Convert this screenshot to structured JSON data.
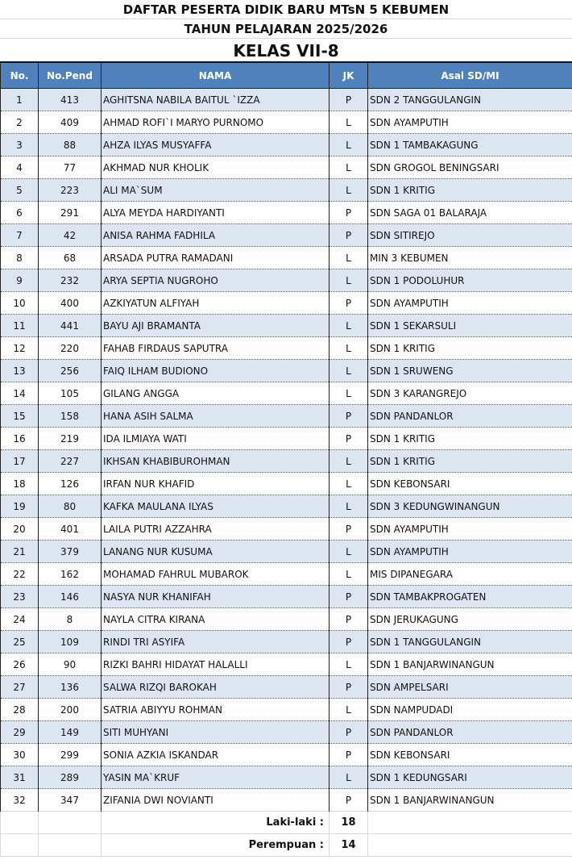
{
  "titles": {
    "line1": "DAFTAR PESERTA DIDIK BARU  MTsN 5 KEBUMEN",
    "line2": "TAHUN PELAJARAN 2025/2026",
    "line3": "KELAS VII-8"
  },
  "colors": {
    "header_bg": "#4f81bd",
    "odd_row_bg": "#dce6f1"
  },
  "columns": [
    "No.",
    "No.Pend",
    "NAMA",
    "JK",
    "Asal SD/MI"
  ],
  "rows": [
    [
      "1",
      "413",
      "AGHITSNA NABILA BAITUL `IZZA",
      "P",
      "SDN 2 TANGGULANGIN"
    ],
    [
      "2",
      "409",
      "AHMAD ROFI`I MARYO PURNOMO",
      "L",
      "SDN AYAMPUTIH"
    ],
    [
      "3",
      "88",
      "AHZA ILYAS MUSYAFFA",
      "L",
      "SDN 1 TAMBAKAGUNG"
    ],
    [
      "4",
      "77",
      "AKHMAD NUR KHOLIK",
      "L",
      "SDN GROGOL BENINGSARI"
    ],
    [
      "5",
      "223",
      "ALI MA`SUM",
      "L",
      "SDN 1 KRITIG"
    ],
    [
      "6",
      "291",
      "ALYA MEYDA HARDIYANTI",
      "P",
      "SDN SAGA 01 BALARAJA"
    ],
    [
      "7",
      "42",
      "ANISA RAHMA FADHILA",
      "P",
      "SDN SITIREJO"
    ],
    [
      "8",
      "68",
      "ARSADA PUTRA RAMADANI",
      "L",
      "MIN 3 KEBUMEN"
    ],
    [
      "9",
      "232",
      "ARYA SEPTIA NUGROHO",
      "L",
      "SDN 1 PODOLUHUR"
    ],
    [
      "10",
      "400",
      "AZKIYATUN ALFIYAH",
      "P",
      "SDN AYAMPUTIH"
    ],
    [
      "11",
      "441",
      "BAYU AJI BRAMANTA",
      "L",
      "SDN 1 SEKARSULI"
    ],
    [
      "12",
      "220",
      "FAHAB FIRDAUS SAPUTRA",
      "L",
      "SDN 1 KRITIG"
    ],
    [
      "13",
      "256",
      "FAIQ ILHAM BUDIONO",
      "L",
      "SDN 1 SRUWENG"
    ],
    [
      "14",
      "105",
      "GILANG ANGGA",
      "L",
      "SDN 3 KARANGREJO"
    ],
    [
      "15",
      "158",
      "HANA ASIH SALMA",
      "P",
      "SDN PANDANLOR"
    ],
    [
      "16",
      "219",
      "IDA ILMIAYA WATI",
      "P",
      "SDN 1 KRITIG"
    ],
    [
      "17",
      "227",
      "IKHSAN KHABIBUROHMAN",
      "L",
      "SDN 1 KRITIG"
    ],
    [
      "18",
      "126",
      "IRFAN NUR KHAFID",
      "L",
      "SDN KEBONSARI"
    ],
    [
      "19",
      "80",
      "KAFKA MAULANA ILYAS",
      "L",
      "SDN 3 KEDUNGWINANGUN"
    ],
    [
      "20",
      "401",
      "LAILA PUTRI AZZAHRA",
      "P",
      "SDN AYAMPUTIH"
    ],
    [
      "21",
      "379",
      "LANANG NUR KUSUMA",
      "L",
      "SDN AYAMPUTIH"
    ],
    [
      "22",
      "162",
      "MOHAMAD FAHRUL MUBAROK",
      "L",
      "MIS DIPANEGARA"
    ],
    [
      "23",
      "146",
      "NASYA NUR KHANIFAH",
      "P",
      "SDN TAMBAKPROGATEN"
    ],
    [
      "24",
      "8",
      "NAYLA CITRA KIRANA",
      "P",
      "SDN JERUKAGUNG"
    ],
    [
      "25",
      "109",
      "RINDI TRI ASYIFA",
      "P",
      "SDN 1 TANGGULANGIN"
    ],
    [
      "26",
      "90",
      "RIZKI BAHRI HIDAYAT HALALLI",
      "L",
      "SDN 1 BANJARWINANGUN"
    ],
    [
      "27",
      "136",
      "SALWA RIZQI BAROKAH",
      "P",
      "SDN AMPELSARI"
    ],
    [
      "28",
      "200",
      "SATRIA ABIYYU ROHMAN",
      "L",
      "SDN NAMPUDADI"
    ],
    [
      "29",
      "149",
      "SITI MUHYANI",
      "P",
      "SDN PANDANLOR"
    ],
    [
      "30",
      "299",
      "SONIA AZKIA ISKANDAR",
      "P",
      "SDN KEBONSARI"
    ],
    [
      "31",
      "289",
      "YASIN MA`KRUF",
      "L",
      "SDN 1 KEDUNGSARI"
    ],
    [
      "32",
      "347",
      "ZIFANIA DWI NOVIANTI",
      "P",
      "SDN 1 BANJARWINANGUN"
    ]
  ],
  "summary": {
    "male_label": "Laki-laki :",
    "male_count": "18",
    "female_label": "Perempuan :",
    "female_count": "14"
  }
}
